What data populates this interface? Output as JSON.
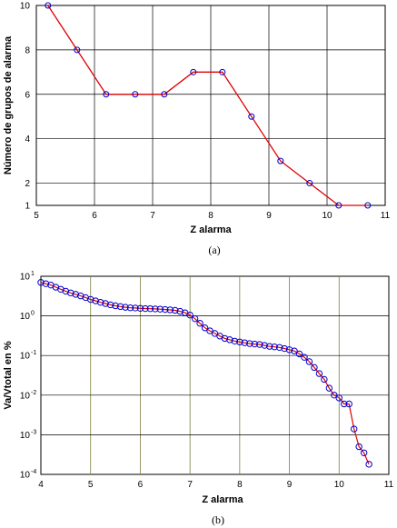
{
  "chart_data": [
    {
      "type": "line",
      "panel_label": "(a)",
      "xlabel": "Z alarma",
      "ylabel": "Número de grupos de alarma",
      "xlim": [
        5,
        11
      ],
      "ylim": [
        1,
        10
      ],
      "xticks": [
        "5",
        "6",
        "7",
        "8",
        "9",
        "10",
        "11"
      ],
      "yticks": [
        "1",
        "2",
        "4",
        "6",
        "8",
        "10"
      ],
      "grid": true,
      "line_color": "#e00000",
      "marker_color": "#0000cc",
      "x": [
        5.2,
        5.7,
        6.2,
        6.7,
        7.2,
        7.7,
        8.2,
        8.7,
        9.2,
        9.7,
        10.2,
        10.7
      ],
      "y": [
        10,
        8,
        6,
        6,
        6,
        7,
        7,
        5,
        3,
        2,
        1,
        1
      ]
    },
    {
      "type": "line",
      "panel_label": "(b)",
      "xlabel": "Z alarma",
      "ylabel": "Va/Vtotal en %",
      "xlim": [
        4,
        11
      ],
      "ylim": [
        0.0001,
        10
      ],
      "yscale": "log",
      "xticks": [
        "4",
        "5",
        "6",
        "7",
        "8",
        "9",
        "10",
        "11"
      ],
      "yticks": [
        {
          "base": "10",
          "exp": "1",
          "value": 10
        },
        {
          "base": "10",
          "exp": "0",
          "value": 1
        },
        {
          "base": "10",
          "exp": "-1",
          "value": 0.1
        },
        {
          "base": "10",
          "exp": "-2",
          "value": 0.01
        },
        {
          "base": "10",
          "exp": "-3",
          "value": 0.001
        },
        {
          "base": "10",
          "exp": "-4",
          "value": 0.0001
        }
      ],
      "grid": true,
      "line_color": "#e00000",
      "marker_color": "#0000cc",
      "x": [
        4.0,
        4.1,
        4.2,
        4.3,
        4.4,
        4.5,
        4.6,
        4.7,
        4.8,
        4.9,
        5.0,
        5.1,
        5.2,
        5.3,
        5.4,
        5.5,
        5.6,
        5.7,
        5.8,
        5.9,
        6.0,
        6.1,
        6.2,
        6.3,
        6.4,
        6.5,
        6.6,
        6.7,
        6.8,
        6.9,
        7.0,
        7.1,
        7.2,
        7.3,
        7.4,
        7.5,
        7.6,
        7.7,
        7.8,
        7.9,
        8.0,
        8.1,
        8.2,
        8.3,
        8.4,
        8.5,
        8.6,
        8.7,
        8.8,
        8.9,
        9.0,
        9.1,
        9.2,
        9.3,
        9.4,
        9.5,
        9.6,
        9.7,
        9.8,
        9.9,
        10.0,
        10.1,
        10.2,
        10.3,
        10.4,
        10.5,
        10.6
      ],
      "y": [
        7,
        6.5,
        6,
        5.3,
        4.7,
        4.2,
        3.8,
        3.5,
        3.2,
        2.9,
        2.6,
        2.4,
        2.2,
        2.05,
        1.9,
        1.8,
        1.72,
        1.65,
        1.6,
        1.58,
        1.55,
        1.53,
        1.52,
        1.5,
        1.48,
        1.45,
        1.42,
        1.38,
        1.3,
        1.2,
        1.05,
        0.85,
        0.65,
        0.5,
        0.42,
        0.36,
        0.31,
        0.27,
        0.25,
        0.23,
        0.22,
        0.21,
        0.2,
        0.195,
        0.19,
        0.18,
        0.17,
        0.165,
        0.16,
        0.15,
        0.14,
        0.13,
        0.11,
        0.09,
        0.07,
        0.05,
        0.035,
        0.025,
        0.015,
        0.01,
        0.0085,
        0.006,
        0.006,
        0.0014,
        0.0005,
        0.00035,
        0.00018
      ]
    }
  ]
}
